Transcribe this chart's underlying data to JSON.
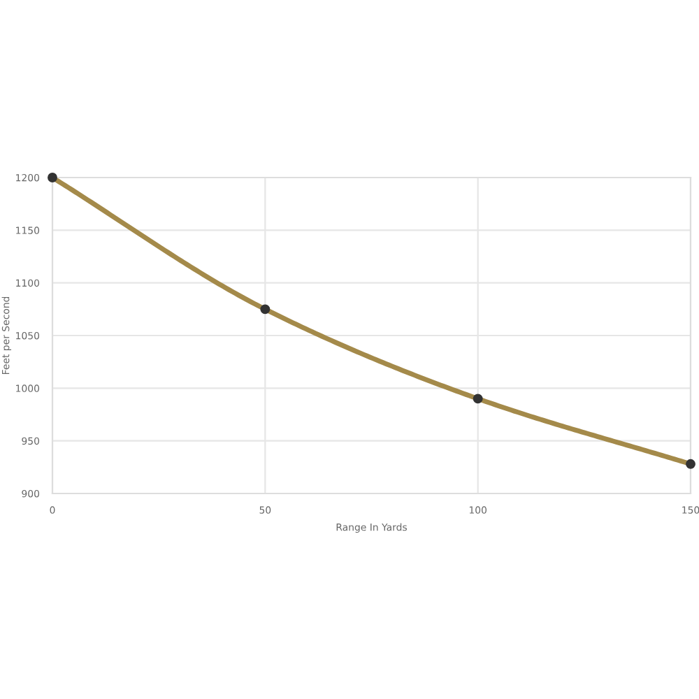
{
  "chart_data": {
    "type": "line",
    "xlabel": "Range In Yards",
    "ylabel": "Feet per Second",
    "x": [
      0,
      50,
      100,
      150
    ],
    "series": [
      {
        "color": "#a48a4a",
        "values": [
          1200,
          1075,
          990,
          928
        ]
      }
    ],
    "xlim": [
      0,
      150
    ],
    "xticks": [
      0,
      50,
      100,
      150
    ],
    "ylim": [
      900,
      1200
    ],
    "yticks": [
      900,
      950,
      1000,
      1050,
      1100,
      1150,
      1200
    ],
    "grid": true,
    "marker": "circle",
    "line_style": "solid"
  }
}
